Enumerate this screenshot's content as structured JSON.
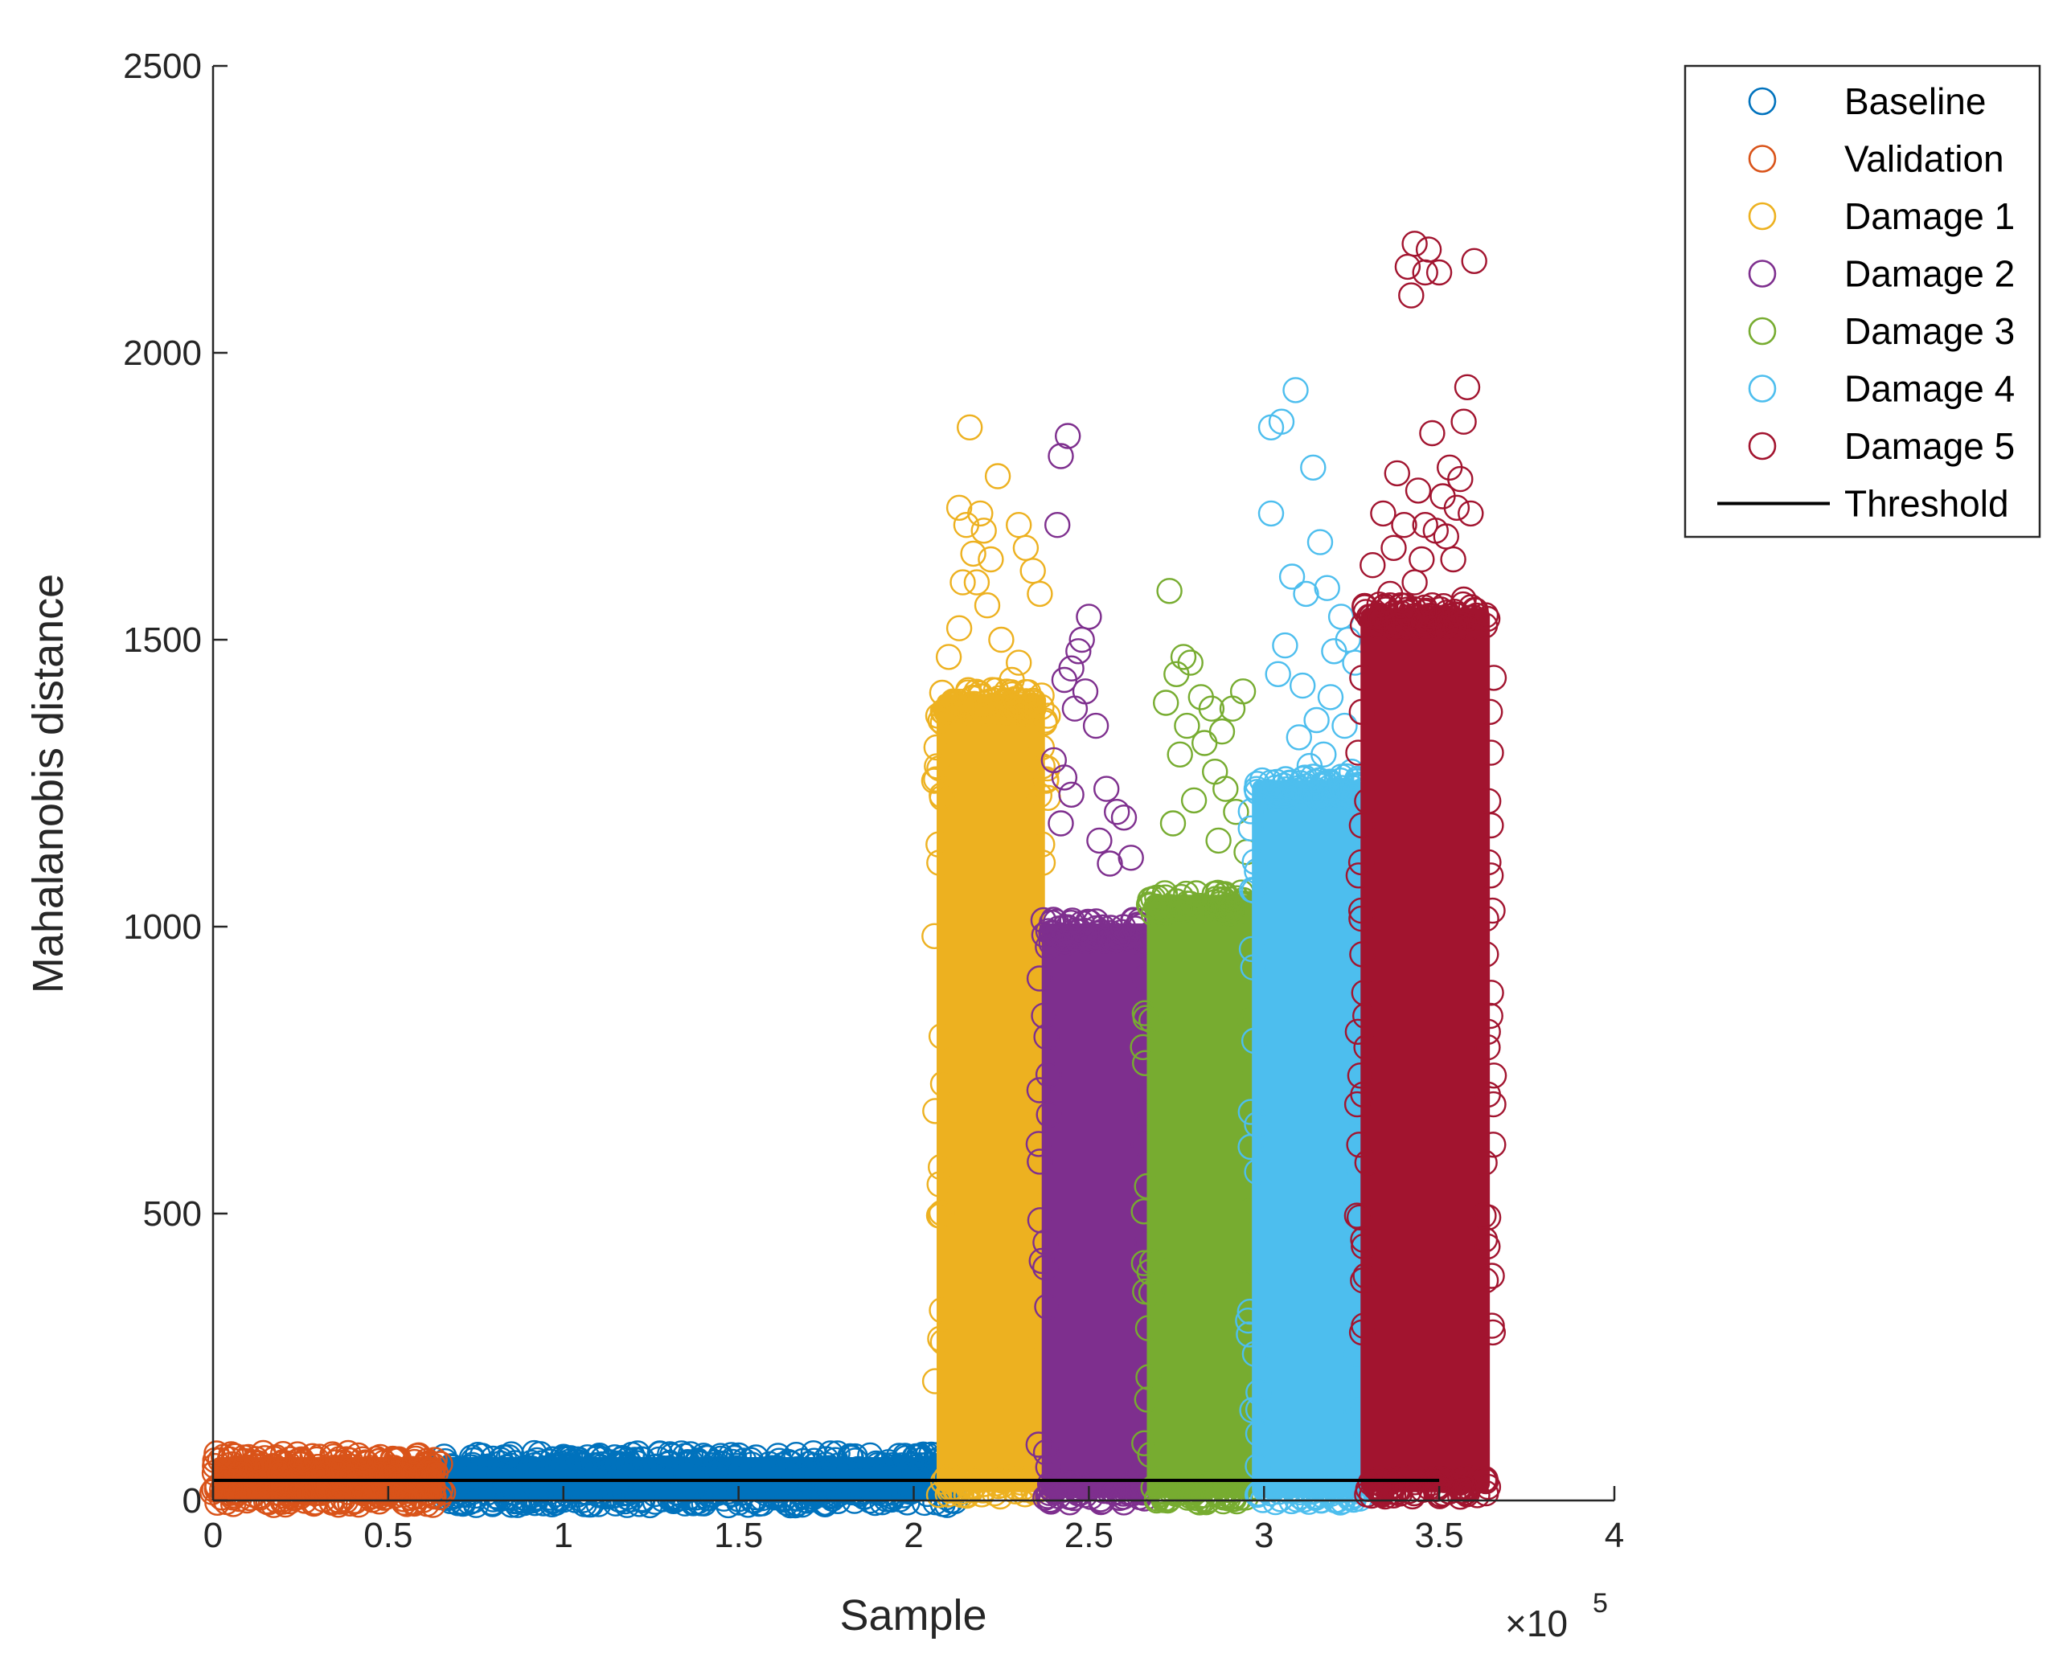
{
  "chart_data": {
    "type": "scatter",
    "title": "",
    "xlabel": "Sample",
    "ylabel": "Mahalanobis distance",
    "xlim": [
      0,
      400000
    ],
    "ylim": [
      0,
      2500
    ],
    "x_ticks": [
      {
        "value": 0,
        "label": "0"
      },
      {
        "value": 50000,
        "label": "0.5"
      },
      {
        "value": 100000,
        "label": "1"
      },
      {
        "value": 150000,
        "label": "1.5"
      },
      {
        "value": 200000,
        "label": "2"
      },
      {
        "value": 250000,
        "label": "2.5"
      },
      {
        "value": 300000,
        "label": "3"
      },
      {
        "value": 350000,
        "label": "3.5"
      },
      {
        "value": 400000,
        "label": "4"
      }
    ],
    "y_ticks": [
      {
        "value": 0,
        "label": "0"
      },
      {
        "value": 500,
        "label": "500"
      },
      {
        "value": 1000,
        "label": "1000"
      },
      {
        "value": 1500,
        "label": "1500"
      },
      {
        "value": 2000,
        "label": "2000"
      },
      {
        "value": 2500,
        "label": "2500"
      }
    ],
    "x_exponent": {
      "base": "×10",
      "power": "5"
    },
    "grid": false,
    "legend_position": "top-right outside",
    "series": [
      {
        "name": "Baseline",
        "color": "#0072BD",
        "marker": "circle",
        "x_range": [
          65000,
          212000
        ],
        "dense_y_range": [
          5,
          70
        ],
        "outliers": [
          [
            140000,
            78
          ],
          [
            155000,
            75
          ],
          [
            205000,
            80
          ],
          [
            175000,
            72
          ]
        ]
      },
      {
        "name": "Validation",
        "color": "#D95319",
        "marker": "circle",
        "x_range": [
          0,
          65000
        ],
        "dense_y_range": [
          5,
          70
        ],
        "outliers": [
          [
            1000,
            82
          ],
          [
            6000,
            78
          ],
          [
            3000,
            76
          ],
          [
            22000,
            72
          ],
          [
            36000,
            72
          ]
        ]
      },
      {
        "name": "Damage 1",
        "color": "#EDB120",
        "marker": "circle",
        "x_range": [
          207000,
          237000
        ],
        "dense_y_range": [
          20,
          1400
        ],
        "outliers": [
          [
            216000,
            1870
          ],
          [
            224000,
            1785
          ],
          [
            213000,
            1730
          ],
          [
            215000,
            1700
          ],
          [
            219000,
            1720
          ],
          [
            220000,
            1690
          ],
          [
            217000,
            1650
          ],
          [
            214000,
            1600
          ],
          [
            222000,
            1640
          ],
          [
            230000,
            1700
          ],
          [
            232000,
            1660
          ],
          [
            234000,
            1620
          ],
          [
            236000,
            1580
          ],
          [
            218000,
            1600
          ],
          [
            221000,
            1560
          ],
          [
            225000,
            1500
          ],
          [
            228000,
            1430
          ],
          [
            210000,
            1470
          ],
          [
            213000,
            1520
          ],
          [
            230000,
            1460
          ]
        ]
      },
      {
        "name": "Damage 2",
        "color": "#7E2F8E",
        "marker": "circle",
        "x_range": [
          237000,
          267000
        ],
        "dense_y_range": [
          10,
          1000
        ],
        "outliers": [
          [
            244000,
            1855
          ],
          [
            242000,
            1820
          ],
          [
            241000,
            1700
          ],
          [
            250000,
            1540
          ],
          [
            248000,
            1500
          ],
          [
            247000,
            1480
          ],
          [
            245000,
            1450
          ],
          [
            243000,
            1430
          ],
          [
            249000,
            1410
          ],
          [
            246000,
            1380
          ],
          [
            252000,
            1350
          ],
          [
            240000,
            1290
          ],
          [
            243000,
            1260
          ],
          [
            245000,
            1230
          ],
          [
            255000,
            1240
          ],
          [
            258000,
            1200
          ],
          [
            260000,
            1190
          ],
          [
            253000,
            1150
          ],
          [
            262000,
            1120
          ],
          [
            256000,
            1110
          ],
          [
            242000,
            1180
          ]
        ]
      },
      {
        "name": "Damage 3",
        "color": "#77AC30",
        "marker": "circle",
        "x_range": [
          267000,
          297000
        ],
        "dense_y_range": [
          10,
          1050
        ],
        "outliers": [
          [
            273000,
            1585
          ],
          [
            277000,
            1470
          ],
          [
            279000,
            1460
          ],
          [
            275000,
            1440
          ],
          [
            282000,
            1400
          ],
          [
            285000,
            1380
          ],
          [
            272000,
            1390
          ],
          [
            288000,
            1340
          ],
          [
            294000,
            1410
          ],
          [
            291000,
            1380
          ],
          [
            278000,
            1350
          ],
          [
            283000,
            1320
          ],
          [
            276000,
            1300
          ],
          [
            286000,
            1270
          ],
          [
            289000,
            1240
          ],
          [
            280000,
            1220
          ],
          [
            292000,
            1200
          ],
          [
            274000,
            1180
          ],
          [
            287000,
            1150
          ],
          [
            295000,
            1130
          ]
        ]
      },
      {
        "name": "Damage 4",
        "color": "#4DBEEE",
        "marker": "circle",
        "x_range": [
          297000,
          328000
        ],
        "dense_y_range": [
          10,
          1250
        ],
        "outliers": [
          [
            309000,
            1935
          ],
          [
            302000,
            1870
          ],
          [
            305000,
            1880
          ],
          [
            314000,
            1800
          ],
          [
            302000,
            1720
          ],
          [
            316000,
            1670
          ],
          [
            308000,
            1610
          ],
          [
            312000,
            1580
          ],
          [
            318000,
            1590
          ],
          [
            322000,
            1540
          ],
          [
            306000,
            1490
          ],
          [
            320000,
            1480
          ],
          [
            324000,
            1500
          ],
          [
            326000,
            1460
          ],
          [
            304000,
            1440
          ],
          [
            311000,
            1420
          ],
          [
            315000,
            1360
          ],
          [
            319000,
            1400
          ],
          [
            323000,
            1350
          ],
          [
            310000,
            1330
          ],
          [
            317000,
            1300
          ],
          [
            313000,
            1280
          ],
          [
            325000,
            1270
          ]
        ]
      },
      {
        "name": "Damage 5",
        "color": "#A2142F",
        "marker": "circle",
        "x_range": [
          328000,
          364000
        ],
        "dense_y_range": [
          20,
          1550
        ],
        "outliers": [
          [
            343000,
            2190
          ],
          [
            347000,
            2180
          ],
          [
            341000,
            2150
          ],
          [
            346000,
            2140
          ],
          [
            350000,
            2140
          ],
          [
            360000,
            2160
          ],
          [
            342000,
            2100
          ],
          [
            358000,
            1940
          ],
          [
            357000,
            1880
          ],
          [
            348000,
            1860
          ],
          [
            353000,
            1800
          ],
          [
            356000,
            1780
          ],
          [
            338000,
            1790
          ],
          [
            344000,
            1760
          ],
          [
            351000,
            1750
          ],
          [
            355000,
            1730
          ],
          [
            359000,
            1720
          ],
          [
            334000,
            1720
          ],
          [
            340000,
            1700
          ],
          [
            346000,
            1700
          ],
          [
            349000,
            1690
          ],
          [
            352000,
            1680
          ],
          [
            337000,
            1660
          ],
          [
            345000,
            1640
          ],
          [
            354000,
            1640
          ],
          [
            331000,
            1630
          ],
          [
            343000,
            1600
          ],
          [
            336000,
            1580
          ],
          [
            357000,
            1570
          ],
          [
            339000,
            1560
          ],
          [
            348000,
            1560
          ],
          [
            330000,
            1540
          ]
        ]
      },
      {
        "name": "Threshold",
        "color": "#000000",
        "marker": "line",
        "x": [
          0,
          350000
        ],
        "y": [
          35,
          35
        ]
      }
    ]
  }
}
